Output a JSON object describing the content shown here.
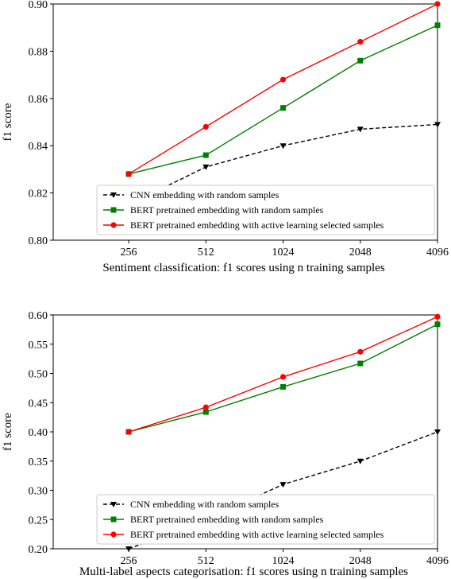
{
  "chart_data": [
    {
      "type": "line",
      "xlabel": "Sentiment classification: f1 scores using n training samples",
      "ylabel": "f1 score",
      "x": [
        256,
        512,
        1024,
        2048,
        4096
      ],
      "x_tick_labels": [
        "256",
        "512",
        "1024",
        "2048",
        "4096"
      ],
      "xlim": [
        130,
        4096
      ],
      "ylim": [
        0.8,
        0.9
      ],
      "y_ticks": [
        0.8,
        0.82,
        0.84,
        0.86,
        0.88,
        0.9
      ],
      "y_tick_labels": [
        "0.80",
        "0.82",
        "0.84",
        "0.86",
        "0.88",
        "0.90"
      ],
      "legend_position": "lower-right",
      "grid": false,
      "series": [
        {
          "name": "CNN embedding with random samples",
          "values": [
            0.815,
            0.831,
            0.84,
            0.847,
            0.849
          ],
          "color": "#000000",
          "dash": "dashed",
          "marker": "triangle-down"
        },
        {
          "name": "BERT pretrained embedding with random samples",
          "values": [
            0.828,
            0.836,
            0.856,
            0.876,
            0.891
          ],
          "color": "#008000",
          "dash": "solid",
          "marker": "square"
        },
        {
          "name": "BERT pretrained embedding with active learning selected samples",
          "values": [
            0.828,
            0.848,
            0.868,
            0.884,
            0.9
          ],
          "color": "#ff0000",
          "dash": "solid",
          "marker": "circle"
        }
      ]
    },
    {
      "type": "line",
      "xlabel": "Multi-label aspects categorisation: f1 scores using n training samples",
      "ylabel": "f1 score",
      "x": [
        256,
        512,
        1024,
        2048,
        4096
      ],
      "x_tick_labels": [
        "256",
        "512",
        "1024",
        "2048",
        "4096"
      ],
      "xlim": [
        130,
        4096
      ],
      "ylim": [
        0.2,
        0.6
      ],
      "y_ticks": [
        0.2,
        0.25,
        0.3,
        0.35,
        0.4,
        0.45,
        0.5,
        0.55,
        0.6
      ],
      "y_tick_labels": [
        "0.20",
        "0.25",
        "0.30",
        "0.35",
        "0.40",
        "0.45",
        "0.50",
        "0.55",
        "0.60"
      ],
      "legend_position": "lower-right",
      "grid": false,
      "series": [
        {
          "name": "CNN embedding with random samples",
          "values": [
            0.2,
            0.25,
            0.31,
            0.35,
            0.4
          ],
          "color": "#000000",
          "dash": "dashed",
          "marker": "triangle-down"
        },
        {
          "name": "BERT pretrained embedding with random samples",
          "values": [
            0.4,
            0.434,
            0.477,
            0.517,
            0.584
          ],
          "color": "#008000",
          "dash": "solid",
          "marker": "square"
        },
        {
          "name": "BERT pretrained embedding with active learning selected samples",
          "values": [
            0.4,
            0.442,
            0.494,
            0.537,
            0.597
          ],
          "color": "#ff0000",
          "dash": "solid",
          "marker": "circle"
        }
      ]
    }
  ]
}
